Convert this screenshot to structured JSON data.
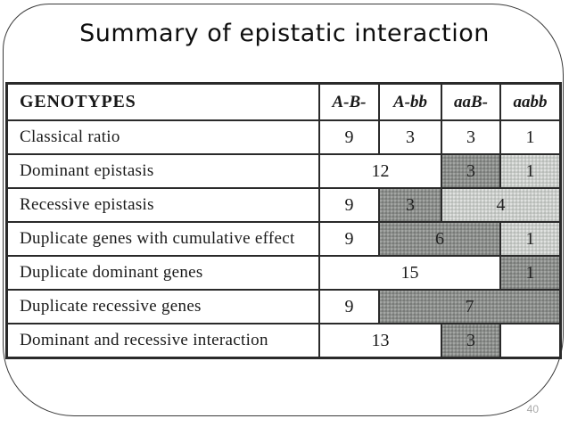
{
  "slide": {
    "title": "Summary of epistatic interaction",
    "page_number": "40"
  },
  "table": {
    "header_label": "GENOTYPES",
    "columns": [
      "A-B-",
      "A-bb",
      "aaB-",
      "aabb"
    ],
    "rows": [
      {
        "label": "Classical ratio",
        "cells": [
          "9",
          "3",
          "3",
          "1"
        ]
      },
      {
        "label": "Dominant epistasis",
        "cells": [
          "12",
          "3",
          "1"
        ]
      },
      {
        "label": "Recessive epistasis",
        "cells": [
          "9",
          "3",
          "4"
        ]
      },
      {
        "label": "Duplicate genes with cumulative effect",
        "cells": [
          "9",
          "6",
          "1"
        ]
      },
      {
        "label": "Duplicate dominant genes",
        "cells": [
          "15",
          "1"
        ]
      },
      {
        "label": "Duplicate recessive genes",
        "cells": [
          "9",
          "7"
        ]
      },
      {
        "label": "Dominant and recessive interaction",
        "cells": [
          "13",
          "3",
          ""
        ]
      }
    ],
    "colors": {
      "shade_dark": "#8b8e8b",
      "shade_light": "#c8cbc8",
      "border": "#2a2a2a"
    }
  }
}
